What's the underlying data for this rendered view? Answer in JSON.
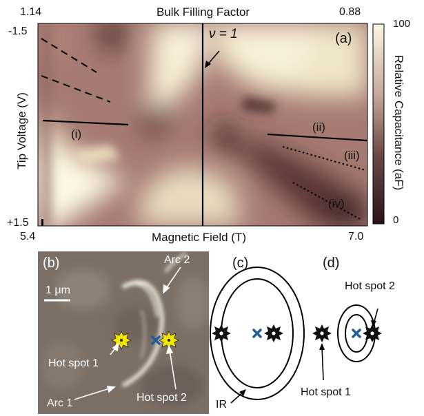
{
  "panel_a": {
    "letter": "(a)",
    "top_axis_label": "Bulk Filling Factor",
    "top_left_value": "1.14",
    "top_right_value": "0.88",
    "bottom_axis_label": "Magnetic Field (T)",
    "bottom_left_value": "5.4",
    "bottom_right_value": "7.0",
    "y_axis_label": "Tip Voltage (V)",
    "y_top_value": "-1.5",
    "y_bottom_value": "+1.5",
    "nu_annotation": "ν = 1",
    "line_labels": [
      "(i)",
      "(ii)",
      "(iii)",
      "(iv)"
    ],
    "colorbar_label": "Relative Capacitance (aF)",
    "colorbar_max": "100",
    "colorbar_min": "0",
    "colors": {
      "dark": "#2a1418",
      "mid": "#9a6e6a",
      "light": "#fbf6e2"
    }
  },
  "panel_b": {
    "letter": "(b)",
    "scale_bar": "1 μm",
    "labels": {
      "arc1": "Arc 1",
      "arc2": "Arc 2",
      "hot1": "Hot spot 1",
      "hot2": "Hot spot 2"
    }
  },
  "panel_c": {
    "letter": "(c)",
    "ir_label": "IR"
  },
  "panel_d": {
    "letter": "(d)",
    "hot1": "Hot spot 1",
    "hot2": "Hot spot 2"
  },
  "marker_colors": {
    "center_cross": "#1f5c9c",
    "hot_spot_b": "#f2e600"
  }
}
